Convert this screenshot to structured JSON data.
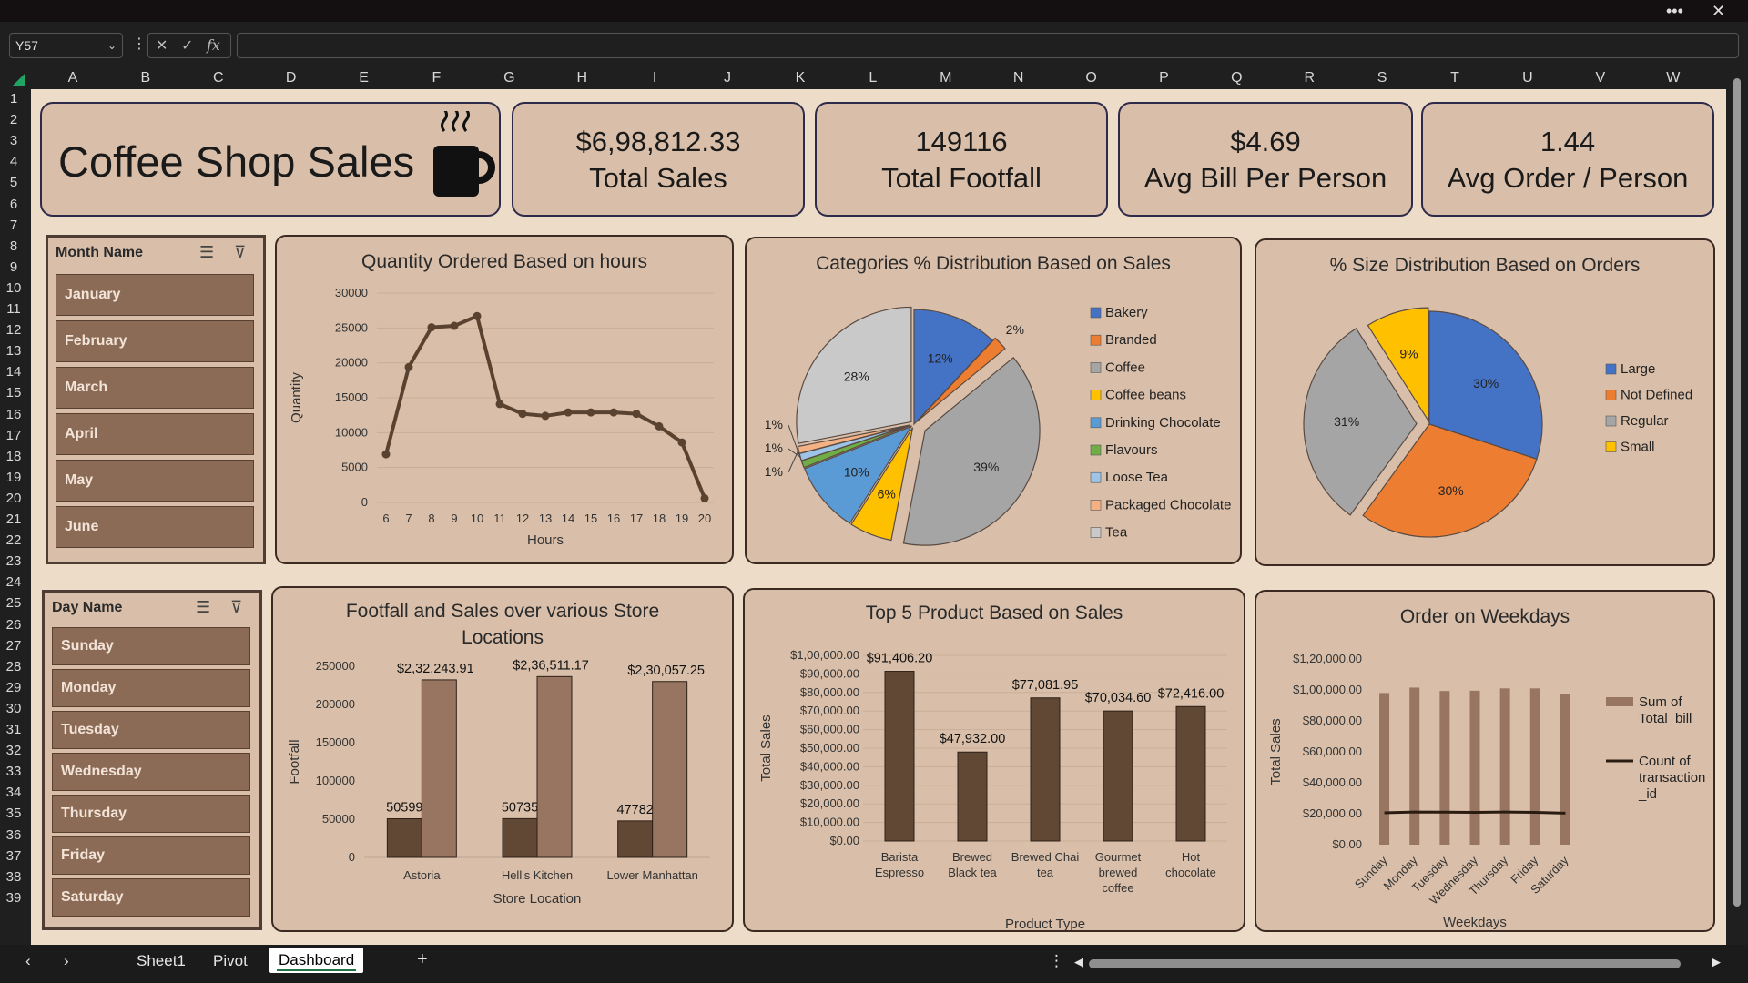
{
  "app": {
    "name_box": "Y57",
    "sheet_tabs": [
      "Sheet1",
      "Pivot",
      "Dashboard"
    ],
    "active_tab": "Dashboard",
    "columns": [
      "A",
      "B",
      "C",
      "D",
      "E",
      "F",
      "G",
      "H",
      "I",
      "J",
      "K",
      "L",
      "M",
      "N",
      "O",
      "P",
      "Q",
      "R",
      "S",
      "T",
      "U",
      "V",
      "W"
    ],
    "rows": [
      "1",
      "2",
      "3",
      "4",
      "5",
      "6",
      "7",
      "8",
      "9",
      "10",
      "11",
      "12",
      "13",
      "14",
      "15",
      "16",
      "17",
      "18",
      "19",
      "20",
      "21",
      "22",
      "23",
      "24",
      "25",
      "26",
      "27",
      "28",
      "29",
      "30",
      "31",
      "32",
      "33",
      "34",
      "35",
      "36",
      "37",
      "38",
      "39"
    ]
  },
  "title": "Coffee Shop Sales",
  "kpis": [
    {
      "value": "$6,98,812.33",
      "label": "Total Sales"
    },
    {
      "value": "149116",
      "label": "Total Footfall"
    },
    {
      "value": "$4.69",
      "label": "Avg Bill Per Person"
    },
    {
      "value": "1.44",
      "label": "Avg Order / Person"
    }
  ],
  "slicers": {
    "month": {
      "header": "Month Name",
      "items": [
        "January",
        "February",
        "March",
        "April",
        "May",
        "June"
      ]
    },
    "day": {
      "header": "Day Name",
      "items": [
        "Sunday",
        "Monday",
        "Tuesday",
        "Wednesday",
        "Thursday",
        "Friday",
        "Saturday"
      ]
    }
  },
  "colors": {
    "bar_dark": "#614835",
    "bar_light": "#977560",
    "line": "#5a4231",
    "panel": "#d9bfa9",
    "sheet": "#ecdcc8"
  },
  "chart_data": [
    {
      "id": "hours",
      "type": "line",
      "title": "Quantity Ordered Based on hours",
      "xlabel": "Hours",
      "ylabel": "Quantity",
      "x": [
        6,
        7,
        8,
        9,
        10,
        11,
        12,
        13,
        14,
        15,
        16,
        17,
        18,
        19,
        20
      ],
      "values": [
        6900,
        19400,
        25100,
        25300,
        26700,
        14100,
        12700,
        12400,
        12900,
        12900,
        12900,
        12700,
        10900,
        8600,
        600
      ],
      "ylim": [
        0,
        30000
      ],
      "yticks": [
        "0",
        "5000",
        "10000",
        "15000",
        "20000",
        "25000",
        "30000"
      ]
    },
    {
      "id": "categories",
      "type": "pie",
      "title": "Categories %  Distribution Based on Sales",
      "legend_position": "right",
      "slices": [
        {
          "name": "Bakery",
          "pct": 12,
          "label": "12%",
          "color": "#4472c4"
        },
        {
          "name": "Branded",
          "pct": 2,
          "label": "2%",
          "color": "#ed7d31"
        },
        {
          "name": "Coffee",
          "pct": 39,
          "label": "39%",
          "color": "#a5a5a5"
        },
        {
          "name": "Coffee beans",
          "pct": 6,
          "label": "6%",
          "color": "#ffc000"
        },
        {
          "name": "Drinking Chocolate",
          "pct": 10,
          "label": "10%",
          "color": "#5b9bd5"
        },
        {
          "name": "Flavours",
          "pct": 1,
          "label": "1%",
          "color": "#70ad47"
        },
        {
          "name": "Loose Tea",
          "pct": 1,
          "label": "1%",
          "color": "#9dc3e6"
        },
        {
          "name": "Packaged Chocolate",
          "pct": 1,
          "label": "1%",
          "color": "#f4b183"
        },
        {
          "name": "Tea",
          "pct": 28,
          "label": "28%",
          "color": "#c9c9c9"
        }
      ]
    },
    {
      "id": "sizes",
      "type": "pie",
      "title": "% Size Distribution Based on Orders",
      "legend_position": "right",
      "slices": [
        {
          "name": "Large",
          "pct": 30,
          "label": "30%",
          "color": "#4472c4"
        },
        {
          "name": "Not Defined",
          "pct": 30,
          "label": "30%",
          "color": "#ed7d31"
        },
        {
          "name": "Regular",
          "pct": 31,
          "label": "31%",
          "color": "#a5a5a5"
        },
        {
          "name": "Small",
          "pct": 9,
          "label": "9%",
          "color": "#ffc000"
        }
      ]
    },
    {
      "id": "stores",
      "type": "bar",
      "title": "Footfall and Sales over various Store Locations",
      "title_lines": [
        "Footfall and Sales over various Store",
        "Locations"
      ],
      "xlabel": "Store Location",
      "ylabel": "Footfall",
      "categories": [
        "Astoria",
        "Hell's Kitchen",
        "Lower Manhattan"
      ],
      "series": [
        {
          "values": [
            50599,
            50735,
            47782
          ],
          "labels": [
            "50599",
            "50735",
            "47782"
          ]
        },
        {
          "values": [
            232243.91,
            236511.17,
            230057.25
          ],
          "labels": [
            "$2,32,243.91",
            "$2,36,511.17",
            "$2,30,057.25"
          ]
        }
      ],
      "ylim": [
        0,
        250000
      ],
      "yticks": [
        "0",
        "50000",
        "100000",
        "150000",
        "200000",
        "250000"
      ]
    },
    {
      "id": "products",
      "type": "bar",
      "title": "Top 5 Product Based on  Sales",
      "xlabel": "Product Type",
      "ylabel": "Total Sales",
      "categories": [
        [
          "Barista",
          "Espresso"
        ],
        [
          "Brewed",
          "Black tea"
        ],
        [
          "Brewed Chai",
          "tea"
        ],
        [
          "Gourmet",
          "brewed",
          "coffee"
        ],
        [
          "Hot",
          "chocolate"
        ]
      ],
      "values": [
        91406.2,
        47932.0,
        77081.95,
        70034.6,
        72416.0
      ],
      "labels": [
        "$91,406.20",
        "$47,932.00",
        "$77,081.95",
        "$70,034.60",
        "$72,416.00"
      ],
      "ylim": [
        0,
        100000
      ],
      "yticks": [
        "$0.00",
        "$10,000.00",
        "$20,000.00",
        "$30,000.00",
        "$40,000.00",
        "$50,000.00",
        "$60,000.00",
        "$70,000.00",
        "$80,000.00",
        "$90,000.00",
        "$1,00,000.00"
      ]
    },
    {
      "id": "weekdays",
      "type": "bar",
      "title": "Order on Weekdays",
      "xlabel": "Weekdays",
      "ylabel": "Total Sales",
      "categories": [
        "Sunday",
        "Monday",
        "Tuesday",
        "Wednesday",
        "Thursday",
        "Friday",
        "Saturday"
      ],
      "series": [
        {
          "name": "Sum of Total_bill",
          "name_lines": [
            "Sum of",
            "Total_bill"
          ],
          "values": [
            98000,
            101500,
            99300,
            99500,
            101000,
            101000,
            97500
          ]
        },
        {
          "name": "Count of transaction_id",
          "name_lines": [
            "Count of",
            "transaction",
            "_id"
          ],
          "values": [
            20600,
            21100,
            21000,
            20900,
            21100,
            20900,
            20400
          ]
        }
      ],
      "ylim": [
        0,
        120000
      ],
      "yticks": [
        "$0.00",
        "$20,000.00",
        "$40,000.00",
        "$60,000.00",
        "$80,000.00",
        "$1,00,000.00",
        "$1,20,000.00"
      ]
    }
  ]
}
